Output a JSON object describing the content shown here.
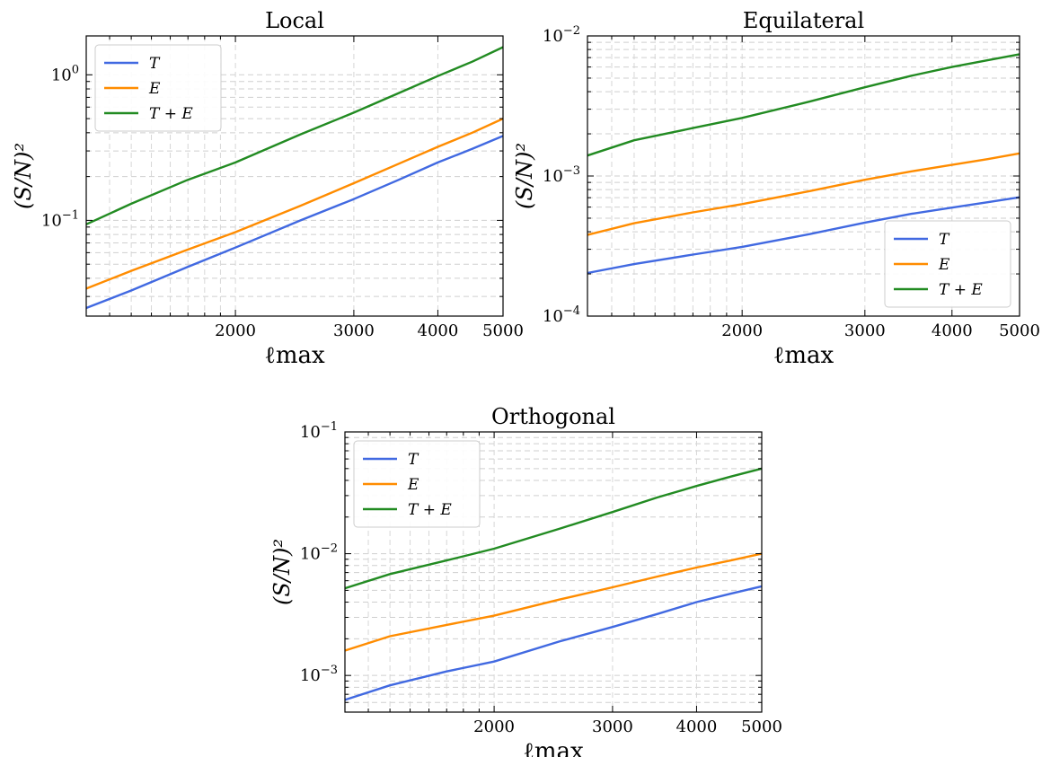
{
  "chart_data": [
    {
      "type": "line",
      "title": "Local",
      "xlabel": "ℓmax",
      "ylabel": "(S/N)²",
      "xscale": "log",
      "yscale": "log",
      "xlim": [
        1200,
        5000
      ],
      "ylim": [
        0.022,
        1.85
      ],
      "xticks": [
        {
          "v": 2000,
          "label": "2000"
        },
        {
          "v": 3000,
          "label": "3000"
        },
        {
          "v": 4000,
          "label": "4000"
        },
        {
          "v": 5000,
          "label": "5000"
        }
      ],
      "yticks": [
        {
          "v": 0.1,
          "base": "10",
          "exp": "−1"
        },
        {
          "v": 1,
          "base": "10",
          "exp": "0"
        }
      ],
      "grid": true,
      "legend": "upper-left",
      "x": [
        1200,
        1400,
        1700,
        2000,
        2500,
        3000,
        3500,
        4000,
        4500,
        5000
      ],
      "series": [
        {
          "name": "T",
          "color": "#4169e1",
          "values": [
            0.025,
            0.033,
            0.048,
            0.065,
            0.1,
            0.14,
            0.19,
            0.25,
            0.31,
            0.38
          ]
        },
        {
          "name": "E",
          "color": "#ff8c00",
          "values": [
            0.034,
            0.045,
            0.063,
            0.083,
            0.126,
            0.18,
            0.245,
            0.32,
            0.4,
            0.5
          ]
        },
        {
          "name": "T + E",
          "color": "#228b22",
          "values": [
            0.094,
            0.13,
            0.19,
            0.25,
            0.39,
            0.55,
            0.75,
            0.98,
            1.23,
            1.55
          ]
        }
      ]
    },
    {
      "type": "line",
      "title": "Equilateral",
      "xlabel": "ℓmax",
      "ylabel": "(S/N)²",
      "xscale": "log",
      "yscale": "log",
      "xlim": [
        1200,
        5000
      ],
      "ylim": [
        0.0001,
        0.01
      ],
      "xticks": [
        {
          "v": 2000,
          "label": "2000"
        },
        {
          "v": 3000,
          "label": "3000"
        },
        {
          "v": 4000,
          "label": "4000"
        },
        {
          "v": 5000,
          "label": "5000"
        }
      ],
      "yticks": [
        {
          "v": 0.0001,
          "base": "10",
          "exp": "−4"
        },
        {
          "v": 0.001,
          "base": "10",
          "exp": "−3"
        },
        {
          "v": 0.01,
          "base": "10",
          "exp": "−2"
        }
      ],
      "grid": true,
      "legend": "lower-right",
      "x": [
        1200,
        1400,
        1700,
        2000,
        2500,
        3000,
        3500,
        4000,
        4500,
        5000
      ],
      "series": [
        {
          "name": "T",
          "color": "#4169e1",
          "values": [
            0.000203,
            0.000235,
            0.000275,
            0.000312,
            0.000385,
            0.000465,
            0.000537,
            0.000595,
            0.00065,
            0.000705
          ]
        },
        {
          "name": "E",
          "color": "#ff8c00",
          "values": [
            0.00038,
            0.00046,
            0.00055,
            0.00063,
            0.00078,
            0.00094,
            0.00108,
            0.0012,
            0.00132,
            0.00145
          ]
        },
        {
          "name": "T + E",
          "color": "#228b22",
          "values": [
            0.0014,
            0.0018,
            0.0022,
            0.0026,
            0.0034,
            0.0043,
            0.0052,
            0.006,
            0.0067,
            0.0074
          ]
        }
      ]
    },
    {
      "type": "line",
      "title": "Orthogonal",
      "xlabel": "ℓmax",
      "ylabel": "(S/N)²",
      "xscale": "log",
      "yscale": "log",
      "xlim": [
        1200,
        5000
      ],
      "ylim": [
        0.0005,
        0.1
      ],
      "xticks": [
        {
          "v": 2000,
          "label": "2000"
        },
        {
          "v": 3000,
          "label": "3000"
        },
        {
          "v": 4000,
          "label": "4000"
        },
        {
          "v": 5000,
          "label": "5000"
        }
      ],
      "yticks": [
        {
          "v": 0.001,
          "base": "10",
          "exp": "−3"
        },
        {
          "v": 0.01,
          "base": "10",
          "exp": "−2"
        },
        {
          "v": 0.1,
          "base": "10",
          "exp": "−1"
        }
      ],
      "grid": true,
      "legend": "upper-left",
      "x": [
        1200,
        1400,
        1700,
        2000,
        2500,
        3000,
        3500,
        4000,
        4500,
        5000
      ],
      "series": [
        {
          "name": "T",
          "color": "#4169e1",
          "values": [
            0.00063,
            0.00083,
            0.00108,
            0.0013,
            0.0019,
            0.0025,
            0.0032,
            0.004,
            0.0047,
            0.0054
          ]
        },
        {
          "name": "E",
          "color": "#ff8c00",
          "values": [
            0.0016,
            0.0021,
            0.0026,
            0.0031,
            0.0042,
            0.0053,
            0.0065,
            0.0077,
            0.0088,
            0.01
          ]
        },
        {
          "name": "T + E",
          "color": "#228b22",
          "values": [
            0.0052,
            0.0068,
            0.0088,
            0.011,
            0.016,
            0.022,
            0.029,
            0.036,
            0.043,
            0.05
          ]
        }
      ]
    }
  ]
}
